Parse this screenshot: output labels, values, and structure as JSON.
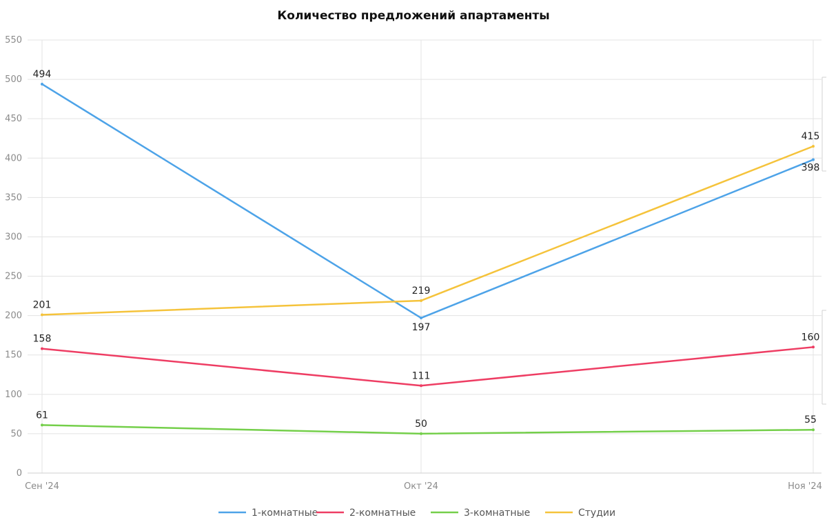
{
  "chart_data": {
    "type": "line",
    "title": "Количество предложений апартаменты",
    "categories": [
      "Сен '24",
      "Окт '24",
      "Ноя '24"
    ],
    "ylim": [
      0,
      550
    ],
    "yticks": [
      0,
      50,
      100,
      150,
      200,
      250,
      300,
      350,
      400,
      450,
      500,
      550
    ],
    "grid": true,
    "legend_position": "bottom-center",
    "series": [
      {
        "name": "1-комнатные",
        "values": [
          494,
          197,
          398
        ],
        "color": "#4da3e8"
      },
      {
        "name": "2-комнатные",
        "values": [
          158,
          111,
          160
        ],
        "color": "#ee3d63"
      },
      {
        "name": "3-комнатные",
        "values": [
          61,
          50,
          55
        ],
        "color": "#74cf4a"
      },
      {
        "name": "Студии",
        "values": [
          201,
          219,
          415
        ],
        "color": "#f5c33b"
      }
    ]
  }
}
